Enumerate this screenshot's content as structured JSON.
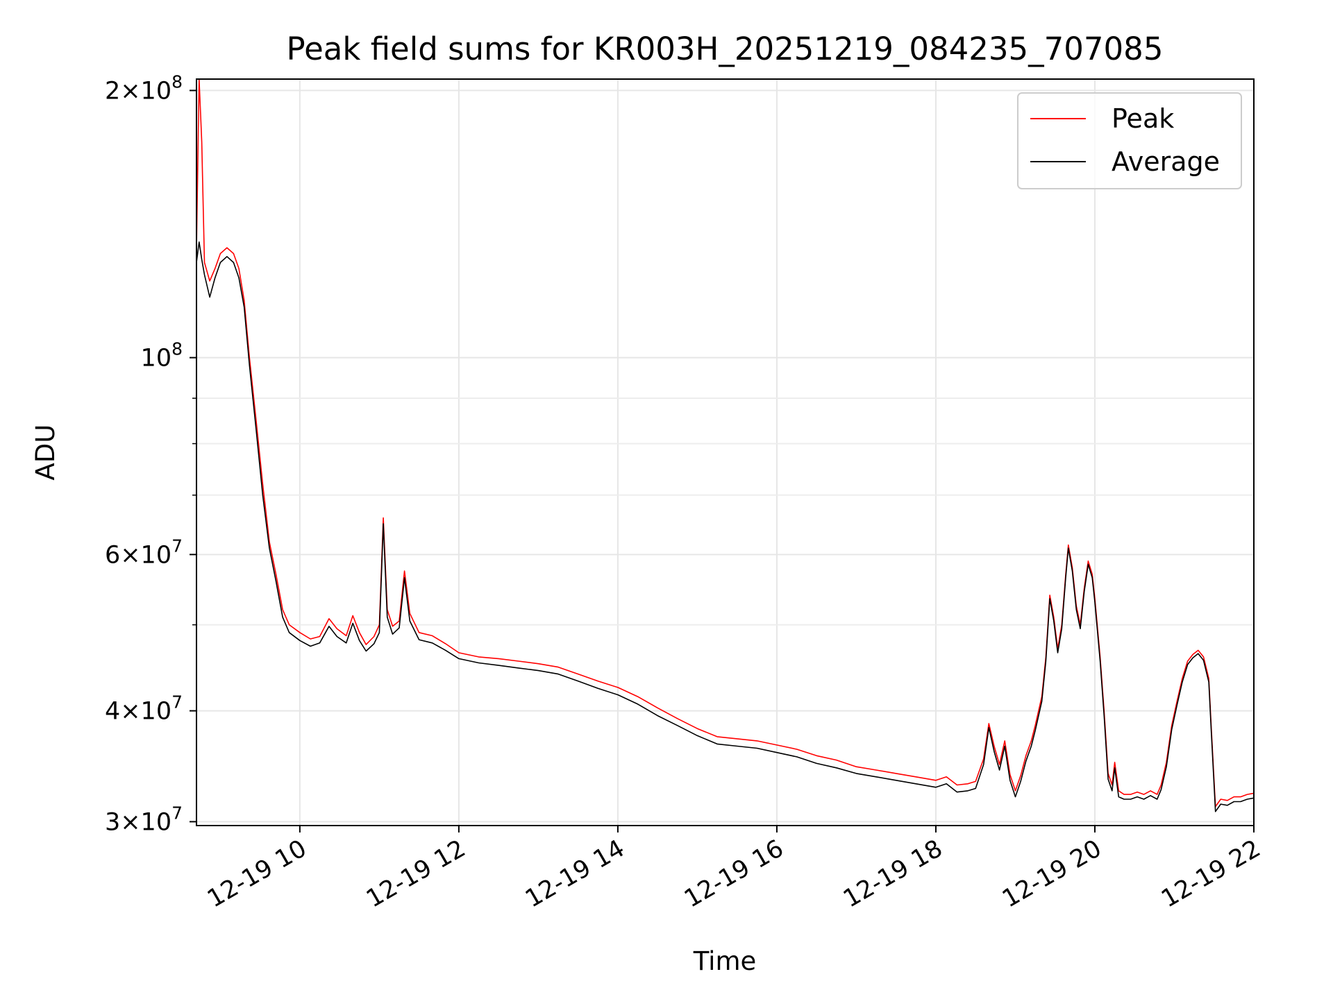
{
  "chart_data": {
    "type": "line",
    "title": "Peak field sums for KR003H_20251219_084235_707085",
    "xlabel": "Time",
    "ylabel": "ADU",
    "y_scale": "log",
    "grid": true,
    "legend_position": "upper right",
    "xlim": [
      "2025-12-19T08:42",
      "2025-12-19T22:00"
    ],
    "ylim": [
      29700000,
      206000000
    ],
    "x_ticks": [
      {
        "t": "2025-12-19T10:00",
        "label": "12-19 10"
      },
      {
        "t": "2025-12-19T12:00",
        "label": "12-19 12"
      },
      {
        "t": "2025-12-19T14:00",
        "label": "12-19 14"
      },
      {
        "t": "2025-12-19T16:00",
        "label": "12-19 16"
      },
      {
        "t": "2025-12-19T18:00",
        "label": "12-19 18"
      },
      {
        "t": "2025-12-19T20:00",
        "label": "12-19 20"
      },
      {
        "t": "2025-12-19T22:00",
        "label": "12-19 22"
      }
    ],
    "y_ticks_major": [
      {
        "v": 30000000,
        "base": "3",
        "exp": "7"
      },
      {
        "v": 40000000,
        "base": "4",
        "exp": "7"
      },
      {
        "v": 60000000,
        "base": "6",
        "exp": "7"
      },
      {
        "v": 100000000,
        "base": "",
        "exp": "8"
      },
      {
        "v": 200000000,
        "base": "2",
        "exp": "8"
      }
    ],
    "y_ticks_minor": [
      50000000,
      70000000,
      80000000,
      90000000
    ],
    "series": [
      {
        "name": "Peak",
        "color": "#ff0000",
        "points": [
          [
            "08:42",
            132000000
          ],
          [
            "08:44",
            206000000
          ],
          [
            "08:46",
            175000000
          ],
          [
            "08:48",
            128000000
          ],
          [
            "08:52",
            122000000
          ],
          [
            "08:56",
            126000000
          ],
          [
            "09:00",
            131000000
          ],
          [
            "09:05",
            133000000
          ],
          [
            "09:10",
            131000000
          ],
          [
            "09:14",
            126000000
          ],
          [
            "09:18",
            116000000
          ],
          [
            "09:22",
            100000000
          ],
          [
            "09:27",
            85000000
          ],
          [
            "09:32",
            72000000
          ],
          [
            "09:37",
            62000000
          ],
          [
            "09:42",
            57000000
          ],
          [
            "09:47",
            52000000
          ],
          [
            "09:52",
            50000000
          ],
          [
            "10:00",
            49000000
          ],
          [
            "10:08",
            48200000
          ],
          [
            "10:15",
            48500000
          ],
          [
            "10:22",
            50800000
          ],
          [
            "10:28",
            49500000
          ],
          [
            "10:35",
            48600000
          ],
          [
            "10:40",
            51200000
          ],
          [
            "10:45",
            49000000
          ],
          [
            "10:50",
            47500000
          ],
          [
            "10:56",
            48500000
          ],
          [
            "11:00",
            50000000
          ],
          [
            "11:03",
            66000000
          ],
          [
            "11:06",
            52000000
          ],
          [
            "11:10",
            49800000
          ],
          [
            "11:15",
            50500000
          ],
          [
            "11:19",
            57500000
          ],
          [
            "11:23",
            51500000
          ],
          [
            "11:30",
            49000000
          ],
          [
            "11:40",
            48600000
          ],
          [
            "11:50",
            47600000
          ],
          [
            "12:00",
            46500000
          ],
          [
            "12:15",
            46000000
          ],
          [
            "12:30",
            45800000
          ],
          [
            "12:45",
            45500000
          ],
          [
            "13:00",
            45200000
          ],
          [
            "13:15",
            44800000
          ],
          [
            "13:30",
            44000000
          ],
          [
            "13:45",
            43200000
          ],
          [
            "14:00",
            42500000
          ],
          [
            "14:15",
            41500000
          ],
          [
            "14:30",
            40300000
          ],
          [
            "14:45",
            39200000
          ],
          [
            "15:00",
            38200000
          ],
          [
            "15:15",
            37400000
          ],
          [
            "15:30",
            37200000
          ],
          [
            "15:45",
            37000000
          ],
          [
            "16:00",
            36600000
          ],
          [
            "16:15",
            36200000
          ],
          [
            "16:30",
            35600000
          ],
          [
            "16:45",
            35200000
          ],
          [
            "17:00",
            34600000
          ],
          [
            "17:15",
            34300000
          ],
          [
            "17:30",
            34000000
          ],
          [
            "17:45",
            33700000
          ],
          [
            "18:00",
            33400000
          ],
          [
            "18:08",
            33700000
          ],
          [
            "18:16",
            33000000
          ],
          [
            "18:24",
            33100000
          ],
          [
            "18:30",
            33300000
          ],
          [
            "18:36",
            35300000
          ],
          [
            "18:40",
            38700000
          ],
          [
            "18:44",
            36500000
          ],
          [
            "18:48",
            34800000
          ],
          [
            "18:52",
            37000000
          ],
          [
            "18:56",
            33900000
          ],
          [
            "19:00",
            32500000
          ],
          [
            "19:04",
            33800000
          ],
          [
            "19:08",
            35600000
          ],
          [
            "19:12",
            37000000
          ],
          [
            "19:15",
            38500000
          ],
          [
            "19:20",
            41500000
          ],
          [
            "19:23",
            46000000
          ],
          [
            "19:26",
            54000000
          ],
          [
            "19:29",
            51000000
          ],
          [
            "19:32",
            47000000
          ],
          [
            "19:35",
            50000000
          ],
          [
            "19:38",
            57000000
          ],
          [
            "19:40",
            61500000
          ],
          [
            "19:43",
            58000000
          ],
          [
            "19:46",
            52500000
          ],
          [
            "19:49",
            50000000
          ],
          [
            "19:52",
            55000000
          ],
          [
            "19:55",
            59000000
          ],
          [
            "19:58",
            57000000
          ],
          [
            "20:00",
            53500000
          ],
          [
            "20:04",
            46000000
          ],
          [
            "20:07",
            40000000
          ],
          [
            "20:10",
            34000000
          ],
          [
            "20:13",
            33000000
          ],
          [
            "20:15",
            35000000
          ],
          [
            "20:18",
            32500000
          ],
          [
            "20:22",
            32200000
          ],
          [
            "20:27",
            32200000
          ],
          [
            "20:32",
            32400000
          ],
          [
            "20:37",
            32200000
          ],
          [
            "20:42",
            32500000
          ],
          [
            "20:47",
            32200000
          ],
          [
            "20:50",
            33000000
          ],
          [
            "20:54",
            35000000
          ],
          [
            "20:58",
            38500000
          ],
          [
            "21:02",
            41000000
          ],
          [
            "21:06",
            43500000
          ],
          [
            "21:10",
            45500000
          ],
          [
            "21:14",
            46300000
          ],
          [
            "21:18",
            46800000
          ],
          [
            "21:22",
            46000000
          ],
          [
            "21:26",
            43500000
          ],
          [
            "21:28",
            38000000
          ],
          [
            "21:31",
            31200000
          ],
          [
            "21:35",
            31800000
          ],
          [
            "21:40",
            31700000
          ],
          [
            "21:45",
            32000000
          ],
          [
            "21:50",
            32000000
          ],
          [
            "21:55",
            32200000
          ],
          [
            "22:00",
            32300000
          ]
        ]
      },
      {
        "name": "Average",
        "color": "#000000",
        "points": [
          [
            "08:42",
            128000000
          ],
          [
            "08:44",
            135000000
          ],
          [
            "08:46",
            129000000
          ],
          [
            "08:48",
            124000000
          ],
          [
            "08:52",
            117000000
          ],
          [
            "08:56",
            123000000
          ],
          [
            "09:00",
            128000000
          ],
          [
            "09:05",
            130000000
          ],
          [
            "09:10",
            128000000
          ],
          [
            "09:14",
            123000000
          ],
          [
            "09:18",
            114000000
          ],
          [
            "09:22",
            98000000
          ],
          [
            "09:27",
            83000000
          ],
          [
            "09:32",
            70000000
          ],
          [
            "09:37",
            61000000
          ],
          [
            "09:42",
            56000000
          ],
          [
            "09:47",
            51000000
          ],
          [
            "09:52",
            49000000
          ],
          [
            "10:00",
            48000000
          ],
          [
            "10:08",
            47300000
          ],
          [
            "10:15",
            47700000
          ],
          [
            "10:22",
            49800000
          ],
          [
            "10:28",
            48500000
          ],
          [
            "10:35",
            47700000
          ],
          [
            "10:40",
            50200000
          ],
          [
            "10:45",
            48000000
          ],
          [
            "10:50",
            46700000
          ],
          [
            "10:56",
            47600000
          ],
          [
            "11:00",
            49000000
          ],
          [
            "11:03",
            65000000
          ],
          [
            "11:06",
            51000000
          ],
          [
            "11:10",
            48800000
          ],
          [
            "11:15",
            49600000
          ],
          [
            "11:19",
            56500000
          ],
          [
            "11:23",
            50500000
          ],
          [
            "11:30",
            48100000
          ],
          [
            "11:40",
            47700000
          ],
          [
            "11:50",
            46800000
          ],
          [
            "12:00",
            45800000
          ],
          [
            "12:15",
            45300000
          ],
          [
            "12:30",
            45000000
          ],
          [
            "12:45",
            44700000
          ],
          [
            "13:00",
            44400000
          ],
          [
            "13:15",
            44000000
          ],
          [
            "13:30",
            43200000
          ],
          [
            "13:45",
            42400000
          ],
          [
            "14:00",
            41700000
          ],
          [
            "14:15",
            40700000
          ],
          [
            "14:30",
            39500000
          ],
          [
            "14:45",
            38500000
          ],
          [
            "15:00",
            37500000
          ],
          [
            "15:15",
            36700000
          ],
          [
            "15:30",
            36500000
          ],
          [
            "15:45",
            36300000
          ],
          [
            "16:00",
            35900000
          ],
          [
            "16:15",
            35500000
          ],
          [
            "16:30",
            34900000
          ],
          [
            "16:45",
            34500000
          ],
          [
            "17:00",
            34000000
          ],
          [
            "17:15",
            33700000
          ],
          [
            "17:30",
            33400000
          ],
          [
            "17:45",
            33100000
          ],
          [
            "18:00",
            32800000
          ],
          [
            "18:08",
            33100000
          ],
          [
            "18:16",
            32400000
          ],
          [
            "18:24",
            32500000
          ],
          [
            "18:30",
            32700000
          ],
          [
            "18:36",
            34800000
          ],
          [
            "18:40",
            38300000
          ],
          [
            "18:44",
            36000000
          ],
          [
            "18:48",
            34300000
          ],
          [
            "18:52",
            36500000
          ],
          [
            "18:56",
            33400000
          ],
          [
            "19:00",
            32000000
          ],
          [
            "19:04",
            33300000
          ],
          [
            "19:08",
            35100000
          ],
          [
            "19:12",
            36500000
          ],
          [
            "19:15",
            38000000
          ],
          [
            "19:20",
            41000000
          ],
          [
            "19:23",
            45500000
          ],
          [
            "19:26",
            53500000
          ],
          [
            "19:29",
            50500000
          ],
          [
            "19:32",
            46500000
          ],
          [
            "19:35",
            49500000
          ],
          [
            "19:38",
            56500000
          ],
          [
            "19:40",
            61000000
          ],
          [
            "19:43",
            57500000
          ],
          [
            "19:46",
            52000000
          ],
          [
            "19:49",
            49500000
          ],
          [
            "19:52",
            54500000
          ],
          [
            "19:55",
            58500000
          ],
          [
            "19:58",
            56500000
          ],
          [
            "20:00",
            53000000
          ],
          [
            "20:04",
            45500000
          ],
          [
            "20:07",
            39500000
          ],
          [
            "20:10",
            33500000
          ],
          [
            "20:13",
            32500000
          ],
          [
            "20:15",
            34500000
          ],
          [
            "20:18",
            32000000
          ],
          [
            "20:22",
            31800000
          ],
          [
            "20:27",
            31800000
          ],
          [
            "20:32",
            32000000
          ],
          [
            "20:37",
            31800000
          ],
          [
            "20:42",
            32100000
          ],
          [
            "20:47",
            31800000
          ],
          [
            "20:50",
            32600000
          ],
          [
            "20:54",
            34600000
          ],
          [
            "20:58",
            38100000
          ],
          [
            "21:02",
            40600000
          ],
          [
            "21:06",
            43100000
          ],
          [
            "21:10",
            45100000
          ],
          [
            "21:14",
            45900000
          ],
          [
            "21:18",
            46400000
          ],
          [
            "21:22",
            45600000
          ],
          [
            "21:26",
            43100000
          ],
          [
            "21:28",
            37600000
          ],
          [
            "21:31",
            30800000
          ],
          [
            "21:35",
            31400000
          ],
          [
            "21:40",
            31300000
          ],
          [
            "21:45",
            31600000
          ],
          [
            "21:50",
            31600000
          ],
          [
            "21:55",
            31800000
          ],
          [
            "22:00",
            31900000
          ]
        ]
      }
    ]
  }
}
